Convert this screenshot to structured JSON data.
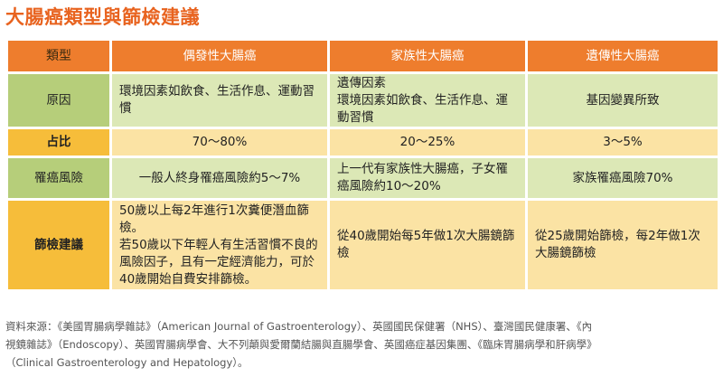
{
  "title": "大腸癌類型與篩檢建議",
  "table": {
    "headers": [
      "類型",
      "偶發性大腸癌",
      "家族性大腸癌",
      "遺傳性大腸癌"
    ],
    "rows": {
      "cause": {
        "label": "原因",
        "sporadic": "環境因素如飲食、生活作息、運動習慣",
        "familial_line1": "遺傳因素",
        "familial_line2": "環境因素如飲食、生活作息、運動習慣",
        "hereditary": "基因變異所致"
      },
      "ratio": {
        "label": "占比",
        "sporadic": "70～80%",
        "familial": "20～25%",
        "hereditary": "3～5%"
      },
      "risk": {
        "label": "罹癌風險",
        "sporadic": "一般人終身罹癌風險約5～7%",
        "familial": "上一代有家族性大腸癌，子女罹癌風險約10～20%",
        "hereditary": "家族罹癌風險70%"
      },
      "screening": {
        "label": "篩檢建議",
        "sporadic_line1": "50歲以上每2年進行1次糞便潛血篩檢。",
        "sporadic_line2": "若50歲以下年輕人有生活習慣不良的風險因子，且有一定經濟能力，可於40歲開始自費安排篩檢。",
        "familial": "從40歲開始每5年做1次大腸鏡篩檢",
        "hereditary": "從25歲開始篩檢，每2年做1次大腸鏡篩檢"
      }
    }
  },
  "source": {
    "line1": "資料來源：《美國胃腸病學雜誌》（American Journal of Gastroenterology）、英國國民保健署（NHS）、臺灣國民健康署、《內",
    "line2": "視鏡雜誌》（Endoscopy）、英國胃腸病學會、大不列顛與愛爾蘭結腸與直腸學會、英國癌症基因集團、《臨床胃腸病學和肝病學》",
    "line3": "（Clinical Gastroenterology and Hepatology）。"
  }
}
